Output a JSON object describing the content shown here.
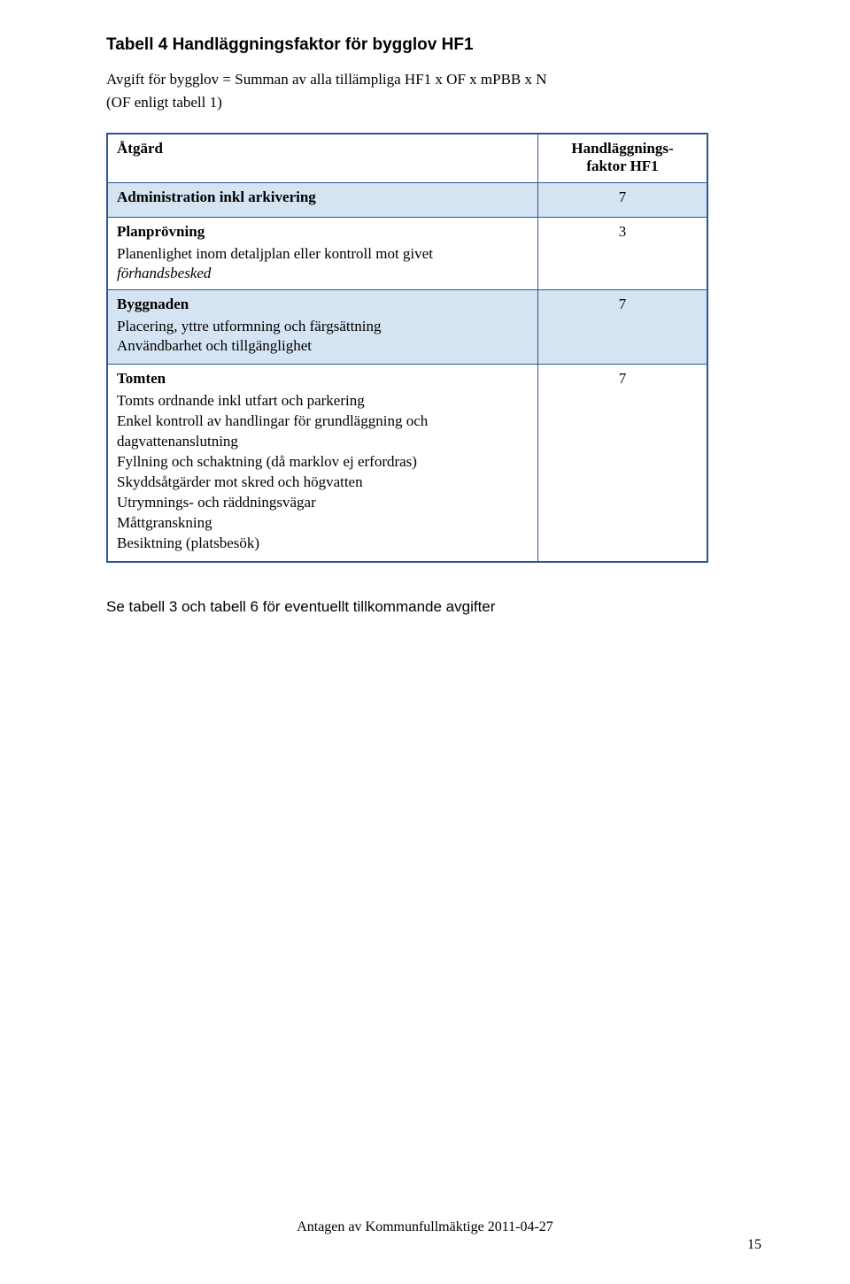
{
  "title": "Tabell 4 Handläggningsfaktor för bygglov HF1",
  "sub_line1": "Avgift för bygglov = Summan av alla tillämpliga HF1 x OF x mPBB x N",
  "sub_line2": "(OF enligt tabell 1)",
  "table": {
    "header": {
      "col1": "Åtgärd",
      "col2_line1": "Handläggnings-",
      "col2_line2": "faktor HF1"
    },
    "rows": [
      {
        "bold": "Administration inkl arkivering",
        "lines": [],
        "italic": "",
        "value": "7",
        "accent": true
      },
      {
        "bold": "Planprövning",
        "lines": [
          "Planenlighet inom detaljplan eller kontroll mot givet"
        ],
        "italic": "förhandsbesked",
        "value": "3",
        "accent": false
      },
      {
        "bold": "Byggnaden",
        "lines": [
          "Placering, yttre utformning och färgsättning",
          "Användbarhet och tillgänglighet"
        ],
        "italic": "",
        "value": "7",
        "accent": true
      },
      {
        "bold": "Tomten",
        "lines": [
          "Tomts ordnande inkl utfart och parkering",
          "Enkel kontroll av handlingar för grundläggning och",
          "dagvattenanslutning",
          "Fyllning och schaktning (då marklov ej erfordras)",
          "Skyddsåtgärder mot skred och högvatten",
          "Utrymnings- och räddningsvägar",
          "Måttgranskning",
          "Besiktning (platsbesök)"
        ],
        "italic": "",
        "value": "7",
        "accent": false
      }
    ]
  },
  "post_note": "Se tabell 3 och tabell 6 för eventuellt tillkommande avgifter",
  "footer": "Antagen av Kommunfullmäktige 2011-04-27",
  "page_num": "15"
}
